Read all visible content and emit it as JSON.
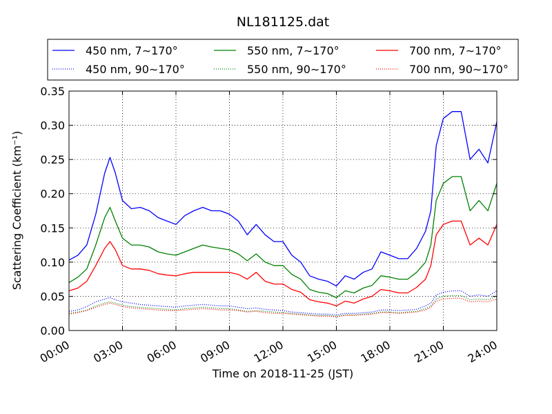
{
  "chart_data": {
    "type": "line",
    "title": "NL181125.dat",
    "xlabel": "Time on 2018-11-25 (JST)",
    "ylabel": "Scattering Coefficient (km⁻¹)",
    "xlim": [
      0,
      24
    ],
    "ylim": [
      0,
      0.35
    ],
    "x_ticks": [
      0,
      3,
      6,
      9,
      12,
      15,
      18,
      21,
      24
    ],
    "x_tick_labels": [
      "00:00",
      "03:00",
      "06:00",
      "09:00",
      "12:00",
      "15:00",
      "18:00",
      "21:00",
      "24:00"
    ],
    "y_ticks": [
      0,
      0.05,
      0.1,
      0.15,
      0.2,
      0.25,
      0.3,
      0.35
    ],
    "y_tick_labels": [
      "0.00",
      "0.05",
      "0.10",
      "0.15",
      "0.20",
      "0.25",
      "0.30",
      "0.35"
    ],
    "grid": true,
    "legend_position": "top",
    "x": [
      0,
      0.5,
      1,
      1.5,
      2,
      2.3,
      2.6,
      3,
      3.5,
      4,
      4.5,
      5,
      5.5,
      6,
      6.5,
      7,
      7.5,
      8,
      8.5,
      9,
      9.5,
      10,
      10.5,
      11,
      11.5,
      12,
      12.5,
      13,
      13.5,
      14,
      14.5,
      15,
      15.5,
      16,
      16.5,
      17,
      17.5,
      18,
      18.5,
      19,
      19.5,
      20,
      20.3,
      20.6,
      21,
      21.5,
      22,
      22.5,
      23,
      23.5,
      24
    ],
    "series": [
      {
        "name": "450 nm, 7∼170°",
        "color": "#0000ff",
        "style": "solid",
        "values": [
          0.103,
          0.11,
          0.125,
          0.17,
          0.23,
          0.253,
          0.23,
          0.19,
          0.178,
          0.18,
          0.175,
          0.165,
          0.16,
          0.155,
          0.168,
          0.175,
          0.18,
          0.175,
          0.175,
          0.17,
          0.16,
          0.14,
          0.155,
          0.14,
          0.13,
          0.13,
          0.11,
          0.1,
          0.08,
          0.075,
          0.072,
          0.065,
          0.08,
          0.075,
          0.085,
          0.09,
          0.115,
          0.11,
          0.105,
          0.105,
          0.12,
          0.145,
          0.175,
          0.27,
          0.31,
          0.32,
          0.32,
          0.25,
          0.265,
          0.245,
          0.305
        ]
      },
      {
        "name": "450 nm, 90∼170°",
        "color": "#0000ff",
        "style": "dotted",
        "values": [
          0.028,
          0.03,
          0.035,
          0.042,
          0.046,
          0.048,
          0.045,
          0.042,
          0.04,
          0.038,
          0.037,
          0.036,
          0.035,
          0.034,
          0.036,
          0.037,
          0.038,
          0.037,
          0.036,
          0.036,
          0.034,
          0.032,
          0.033,
          0.031,
          0.03,
          0.029,
          0.027,
          0.026,
          0.025,
          0.024,
          0.024,
          0.023,
          0.025,
          0.025,
          0.026,
          0.027,
          0.03,
          0.03,
          0.029,
          0.03,
          0.031,
          0.036,
          0.04,
          0.052,
          0.056,
          0.058,
          0.058,
          0.05,
          0.052,
          0.05,
          0.058
        ]
      },
      {
        "name": "550 nm, 7∼170°",
        "color": "#008000",
        "style": "solid",
        "values": [
          0.07,
          0.078,
          0.09,
          0.125,
          0.165,
          0.18,
          0.16,
          0.135,
          0.125,
          0.125,
          0.122,
          0.115,
          0.112,
          0.11,
          0.115,
          0.12,
          0.125,
          0.122,
          0.12,
          0.118,
          0.112,
          0.102,
          0.112,
          0.1,
          0.095,
          0.095,
          0.082,
          0.075,
          0.06,
          0.056,
          0.054,
          0.048,
          0.058,
          0.055,
          0.062,
          0.066,
          0.08,
          0.078,
          0.075,
          0.075,
          0.085,
          0.1,
          0.125,
          0.19,
          0.215,
          0.225,
          0.225,
          0.175,
          0.19,
          0.175,
          0.215
        ]
      },
      {
        "name": "550 nm, 90∼170°",
        "color": "#008000",
        "style": "dotted",
        "values": [
          0.025,
          0.027,
          0.03,
          0.036,
          0.04,
          0.042,
          0.04,
          0.037,
          0.035,
          0.034,
          0.033,
          0.032,
          0.031,
          0.03,
          0.032,
          0.033,
          0.034,
          0.033,
          0.032,
          0.032,
          0.03,
          0.028,
          0.029,
          0.028,
          0.027,
          0.026,
          0.025,
          0.024,
          0.023,
          0.022,
          0.022,
          0.021,
          0.023,
          0.023,
          0.024,
          0.025,
          0.027,
          0.027,
          0.026,
          0.027,
          0.028,
          0.032,
          0.036,
          0.046,
          0.05,
          0.051,
          0.051,
          0.045,
          0.046,
          0.045,
          0.05
        ]
      },
      {
        "name": "700 nm, 7∼170°",
        "color": "#ff0000",
        "style": "solid",
        "values": [
          0.058,
          0.062,
          0.072,
          0.095,
          0.12,
          0.13,
          0.118,
          0.095,
          0.09,
          0.09,
          0.088,
          0.083,
          0.081,
          0.08,
          0.083,
          0.085,
          0.085,
          0.085,
          0.085,
          0.085,
          0.082,
          0.075,
          0.085,
          0.072,
          0.068,
          0.068,
          0.06,
          0.056,
          0.045,
          0.042,
          0.04,
          0.036,
          0.043,
          0.04,
          0.046,
          0.05,
          0.06,
          0.058,
          0.055,
          0.055,
          0.063,
          0.075,
          0.095,
          0.14,
          0.155,
          0.16,
          0.16,
          0.125,
          0.135,
          0.125,
          0.155
        ]
      },
      {
        "name": "700 nm, 90∼170°",
        "color": "#ff0000",
        "style": "dotted",
        "values": [
          0.024,
          0.026,
          0.029,
          0.034,
          0.038,
          0.04,
          0.038,
          0.035,
          0.033,
          0.032,
          0.031,
          0.03,
          0.029,
          0.029,
          0.03,
          0.031,
          0.032,
          0.031,
          0.03,
          0.03,
          0.029,
          0.027,
          0.028,
          0.026,
          0.025,
          0.025,
          0.024,
          0.023,
          0.022,
          0.021,
          0.021,
          0.02,
          0.022,
          0.022,
          0.023,
          0.024,
          0.026,
          0.026,
          0.025,
          0.026,
          0.027,
          0.03,
          0.034,
          0.043,
          0.046,
          0.047,
          0.047,
          0.042,
          0.043,
          0.042,
          0.046
        ]
      }
    ]
  }
}
